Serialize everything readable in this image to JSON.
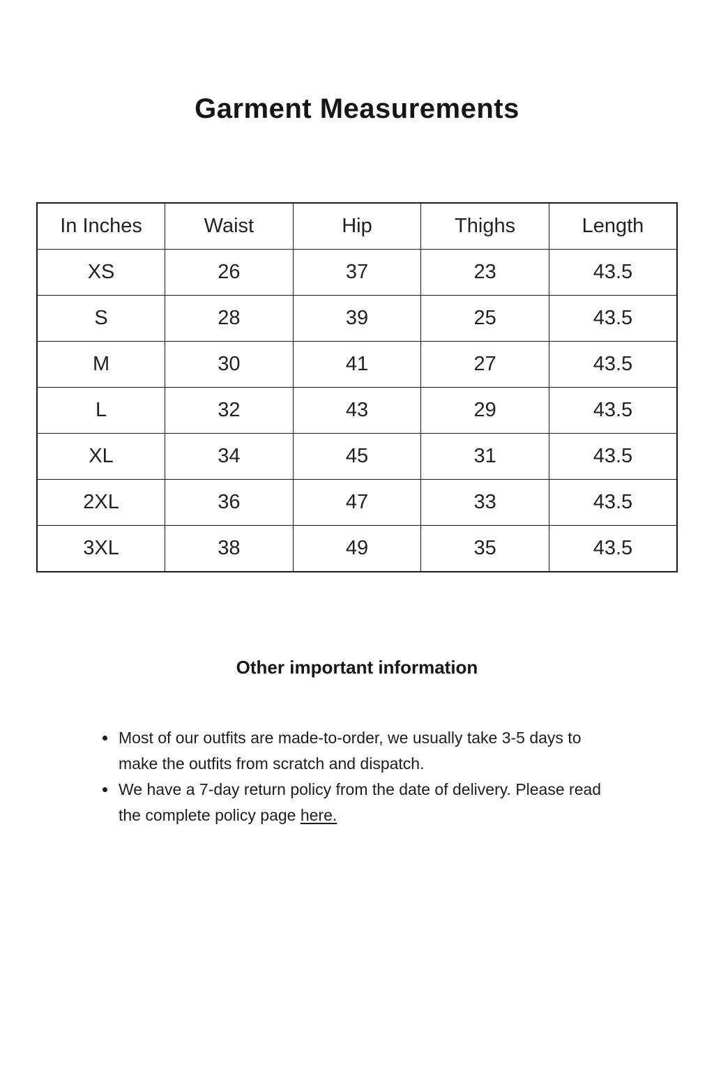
{
  "page": {
    "title": "Garment Measurements",
    "background_color": "#ffffff",
    "text_color": "#1a1a1a"
  },
  "size_chart": {
    "unit_label": "In Inches",
    "headers": [
      "In Inches",
      "Waist",
      "Hip",
      "Thighs",
      "Length"
    ],
    "rows": [
      [
        "XS",
        "26",
        "37",
        "23",
        "43.5"
      ],
      [
        "S",
        "28",
        "39",
        "25",
        "43.5"
      ],
      [
        "M",
        "30",
        "41",
        "27",
        "43.5"
      ],
      [
        "L",
        "32",
        "43",
        "29",
        "43.5"
      ],
      [
        "XL",
        "34",
        "45",
        "31",
        "43.5"
      ],
      [
        "2XL",
        "36",
        "47",
        "33",
        "43.5"
      ],
      [
        "3XL",
        "38",
        "49",
        "35",
        "43.5"
      ]
    ]
  },
  "other_info": {
    "heading": "Other important information",
    "bullets": [
      {
        "text": "Most of our outfits are made-to-order, we usually take 3-5 days to make the outfits from scratch and dispatch."
      },
      {
        "text": "We have a 7-day return policy from the date of delivery. Please read the complete policy page ",
        "link_text": "here."
      }
    ]
  }
}
